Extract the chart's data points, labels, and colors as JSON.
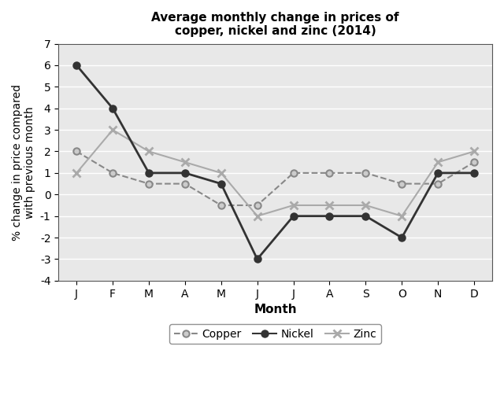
{
  "title": "Average monthly change in prices of\ncopper, nickel and zinc (2014)",
  "xlabel": "Month",
  "ylabel": "% change in price compared\nwith previous month",
  "months": [
    "J",
    "F",
    "M",
    "A",
    "M",
    "J",
    "J",
    "A",
    "S",
    "O",
    "N",
    "D"
  ],
  "copper": [
    2,
    1,
    0.5,
    0.5,
    -0.5,
    -0.5,
    1,
    1,
    1,
    0.5,
    0.5,
    1.5
  ],
  "nickel": [
    6,
    4,
    1,
    1,
    0.5,
    -3,
    -1,
    -1,
    -1,
    -2,
    1,
    1
  ],
  "zinc": [
    1,
    3,
    2,
    1.5,
    1,
    -1,
    -0.5,
    -0.5,
    -0.5,
    -1,
    1.5,
    2
  ],
  "ylim": [
    -4,
    7
  ],
  "yticks": [
    -4,
    -3,
    -2,
    -1,
    0,
    1,
    2,
    3,
    4,
    5,
    6,
    7
  ],
  "copper_color": "#888888",
  "nickel_color": "#333333",
  "zinc_color": "#aaaaaa",
  "plot_bg_color": "#e8e8e8",
  "legend_labels": [
    "Copper",
    "Nickel",
    "Zinc"
  ]
}
